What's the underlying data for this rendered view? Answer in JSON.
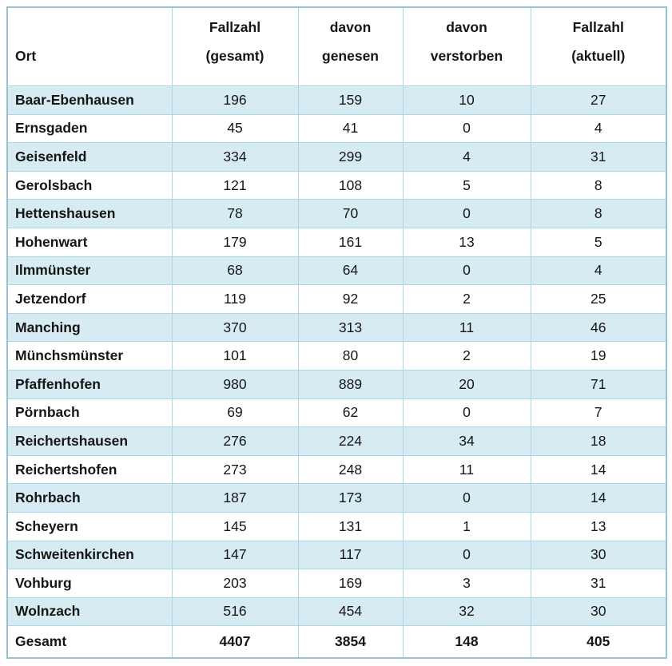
{
  "colors": {
    "row_shaded": "#d7ebf3",
    "row_plain": "#ffffff",
    "grid_border": "#aad8e6",
    "outer_border": "#96c2d4",
    "text": "#161616"
  },
  "table": {
    "columns": [
      {
        "key": "ort",
        "label_line1": "",
        "label_line2": "Ort"
      },
      {
        "key": "gesamt",
        "label_line1": "Fallzahl",
        "label_line2": "(gesamt)"
      },
      {
        "key": "genesen",
        "label_line1": "davon",
        "label_line2": "genesen"
      },
      {
        "key": "verstorben",
        "label_line1": "davon",
        "label_line2": "verstorben"
      },
      {
        "key": "aktuell",
        "label_line1": "Fallzahl",
        "label_line2": "(aktuell)"
      }
    ],
    "rows": [
      [
        "Baar-Ebenhausen",
        "196",
        "159",
        "10",
        "27"
      ],
      [
        "Ernsgaden",
        "45",
        "41",
        "0",
        "4"
      ],
      [
        "Geisenfeld",
        "334",
        "299",
        "4",
        "31"
      ],
      [
        "Gerolsbach",
        "121",
        "108",
        "5",
        "8"
      ],
      [
        "Hettenshausen",
        "78",
        "70",
        "0",
        "8"
      ],
      [
        "Hohenwart",
        "179",
        "161",
        "13",
        "5"
      ],
      [
        "Ilmmünster",
        "68",
        "64",
        "0",
        "4"
      ],
      [
        "Jetzendorf",
        "119",
        "92",
        "2",
        "25"
      ],
      [
        "Manching",
        "370",
        "313",
        "11",
        "46"
      ],
      [
        "Münchsmünster",
        "101",
        "80",
        "2",
        "19"
      ],
      [
        "Pfaffenhofen",
        "980",
        "889",
        "20",
        "71"
      ],
      [
        "Pörnbach",
        "69",
        "62",
        "0",
        "7"
      ],
      [
        "Reichertshausen",
        "276",
        "224",
        "34",
        "18"
      ],
      [
        "Reichertshofen",
        "273",
        "248",
        "11",
        "14"
      ],
      [
        "Rohrbach",
        "187",
        "173",
        "0",
        "14"
      ],
      [
        "Scheyern",
        "145",
        "131",
        "1",
        "13"
      ],
      [
        "Schweitenkirchen",
        "147",
        "117",
        "0",
        "30"
      ],
      [
        "Vohburg",
        "203",
        "169",
        "3",
        "31"
      ],
      [
        "Wolnzach",
        "516",
        "454",
        "32",
        "30"
      ]
    ],
    "total_row": [
      "Gesamt",
      "4407",
      "3854",
      "148",
      "405"
    ]
  },
  "chart_data": {
    "type": "table",
    "title": "",
    "columns": [
      "Ort",
      "Fallzahl (gesamt)",
      "davon genesen",
      "davon verstorben",
      "Fallzahl (aktuell)"
    ],
    "rows": [
      [
        "Baar-Ebenhausen",
        196,
        159,
        10,
        27
      ],
      [
        "Ernsgaden",
        45,
        41,
        0,
        4
      ],
      [
        "Geisenfeld",
        334,
        299,
        4,
        31
      ],
      [
        "Gerolsbach",
        121,
        108,
        5,
        8
      ],
      [
        "Hettenshausen",
        78,
        70,
        0,
        8
      ],
      [
        "Hohenwart",
        179,
        161,
        13,
        5
      ],
      [
        "Ilmmünster",
        68,
        64,
        0,
        4
      ],
      [
        "Jetzendorf",
        119,
        92,
        2,
        25
      ],
      [
        "Manching",
        370,
        313,
        11,
        46
      ],
      [
        "Münchsmünster",
        101,
        80,
        2,
        19
      ],
      [
        "Pfaffenhofen",
        980,
        889,
        20,
        71
      ],
      [
        "Pörnbach",
        69,
        62,
        0,
        7
      ],
      [
        "Reichertshausen",
        276,
        224,
        34,
        18
      ],
      [
        "Reichertshofen",
        273,
        248,
        11,
        14
      ],
      [
        "Rohrbach",
        187,
        173,
        0,
        14
      ],
      [
        "Scheyern",
        145,
        131,
        1,
        13
      ],
      [
        "Schweitenkirchen",
        147,
        117,
        0,
        30
      ],
      [
        "Vohburg",
        203,
        169,
        3,
        31
      ],
      [
        "Wolnzach",
        516,
        454,
        32,
        30
      ],
      [
        "Gesamt",
        4407,
        3854,
        148,
        405
      ]
    ]
  }
}
